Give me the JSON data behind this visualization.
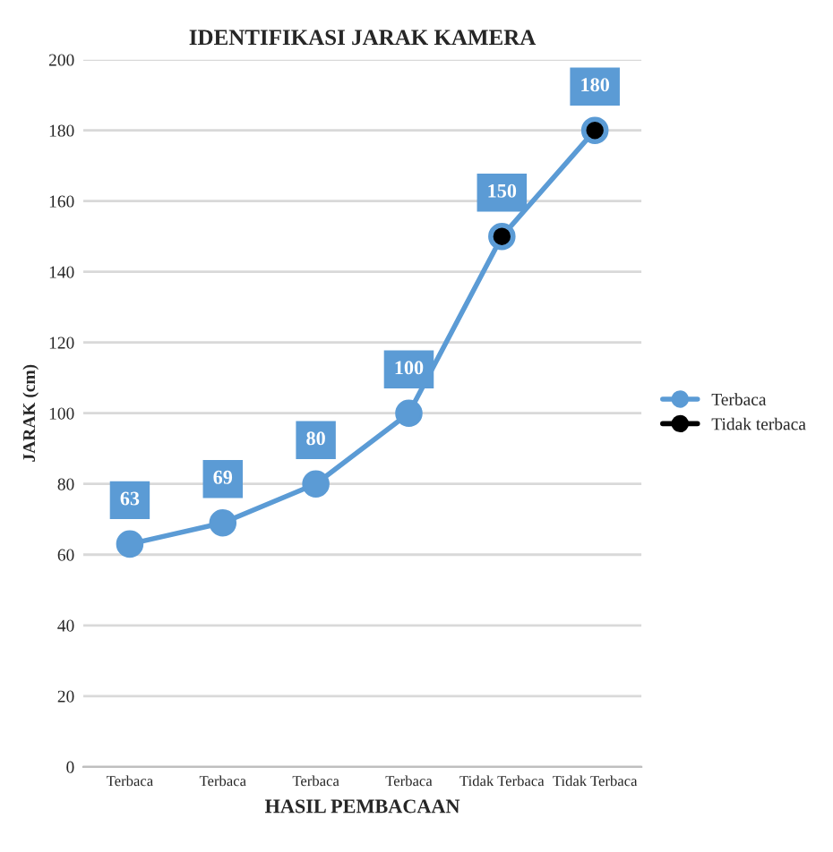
{
  "chart_data": {
    "type": "line",
    "title": "IDENTIFIKASI JARAK KAMERA",
    "xlabel": "HASIL PEMBACAAN",
    "ylabel": "JARAK (cm)",
    "categories": [
      "Terbaca",
      "Terbaca",
      "Terbaca",
      "Terbaca",
      "Tidak Terbaca",
      "Tidak Terbaca"
    ],
    "series": [
      {
        "name": "Terbaca",
        "color": "#5b9bd5",
        "values": [
          63,
          69,
          80,
          100,
          150,
          180
        ],
        "value_labels": [
          "63",
          "69",
          "80",
          "100",
          null,
          null
        ]
      },
      {
        "name": "Tidak terbaca",
        "type": "scatter",
        "color": "#000000",
        "values": [
          null,
          null,
          null,
          null,
          150,
          180
        ],
        "value_labels": [
          null,
          null,
          null,
          null,
          "150",
          "180"
        ]
      }
    ],
    "ylim": [
      0,
      200
    ],
    "yticks": [
      0,
      20,
      40,
      60,
      80,
      100,
      120,
      140,
      160,
      180,
      200
    ],
    "grid": "y",
    "legend": "right",
    "marker": "circle"
  }
}
